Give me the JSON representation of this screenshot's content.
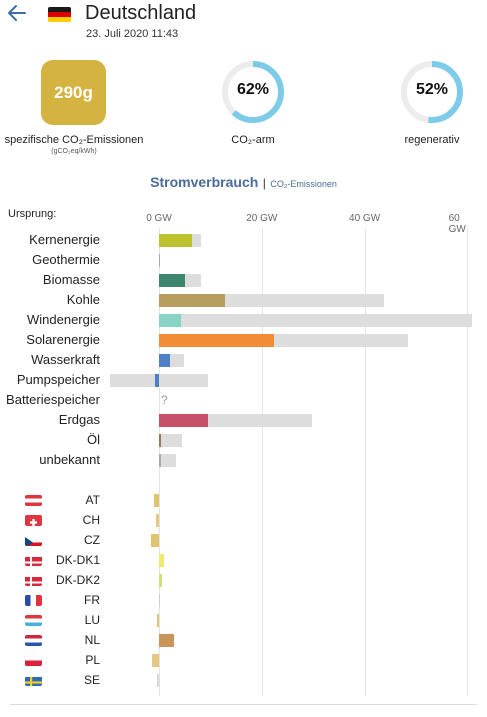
{
  "header": {
    "title": "Deutschland",
    "timestamp": "23. Juli 2020 11:43"
  },
  "colors": {
    "co2_square": "#d4b340",
    "gauge_fill": "#7dcbe8",
    "gauge_track": "#ececec",
    "capacity_bar": "#dddddd",
    "link": "#4a6a99"
  },
  "icons": {
    "back": "arrow-left-icon",
    "zone_flag": "flag-de-icon"
  },
  "metrics": {
    "co2_value": "290g",
    "co2_label": "spezifische CO₂-Emissionen",
    "co2_unit": "(gCO₂eq/kWh)",
    "low_carbon_value": "62%",
    "low_carbon_fraction": 0.62,
    "low_carbon_label": "CO₂-arm",
    "renewable_value": "52%",
    "renewable_fraction": 0.52,
    "renewable_label": "regenerativ"
  },
  "tabs": {
    "active": "Stromverbrauch",
    "separator": "|",
    "other": "CO₂-Emissionen"
  },
  "chart": {
    "origin_label": "Ursprung:",
    "ticks": [
      "0 GW",
      "20 GW",
      "40 GW",
      "60 GW"
    ],
    "tick_values": [
      0,
      20,
      40,
      60
    ],
    "xlim": [
      -9.5,
      61.5
    ],
    "production": [
      {
        "label": "Kernenergie",
        "value": 6.5,
        "capacity": 8.1,
        "color": "#bfc22f"
      },
      {
        "label": "Geothermie",
        "value": 0.05,
        "capacity": 0.05,
        "color": "#aaaaaa"
      },
      {
        "label": "Biomasse",
        "value": 5.0,
        "capacity": 8.2,
        "color": "#3d8570"
      },
      {
        "label": "Kohle",
        "value": 12.8,
        "capacity": 43.8,
        "color": "#b89e5e"
      },
      {
        "label": "Windenergie",
        "value": 4.2,
        "capacity": 60.8,
        "color": "#87d4c4"
      },
      {
        "label": "Solarenergie",
        "value": 22.3,
        "capacity": 48.5,
        "color": "#f08d35"
      },
      {
        "label": "Wasserkraft",
        "value": 2.2,
        "capacity": 4.8,
        "color": "#4d80c4"
      },
      {
        "label": "Pumpspeicher",
        "value": -0.7,
        "capacity": 9.6,
        "capacity_min": -9.5,
        "color": "#4d80c4"
      },
      {
        "label": "Batteriespeicher",
        "value": null,
        "capacity": null,
        "color": "#aaaaaa",
        "note": "?"
      },
      {
        "label": "Erdgas",
        "value": 9.6,
        "capacity": 29.8,
        "color": "#c6526a"
      },
      {
        "label": "Öl",
        "value": 0.4,
        "capacity": 4.4,
        "color": "#967a58"
      },
      {
        "label": "unbekannt",
        "value": 0.3,
        "capacity": 3.3,
        "color": "#aaaaaa"
      }
    ],
    "exchanges": [
      {
        "label": "AT",
        "value": -0.9,
        "color": "#e2c370",
        "flag": "flag-at-icon"
      },
      {
        "label": "CH",
        "value": -0.6,
        "color": "#e6c880",
        "flag": "flag-ch-icon"
      },
      {
        "label": "CZ",
        "value": -1.6,
        "color": "#e2c370",
        "flag": "flag-cz-icon"
      },
      {
        "label": "DK-DK1",
        "value": 1.0,
        "color": "#f2e870",
        "flag": "flag-dk-icon"
      },
      {
        "label": "DK-DK2",
        "value": 0.5,
        "color": "#cfe07a",
        "flag": "flag-dk-icon"
      },
      {
        "label": "FR",
        "value": 0.0,
        "color": "#cccccc",
        "flag": "flag-fr-icon"
      },
      {
        "label": "LU",
        "value": -0.3,
        "color": "#e2c370",
        "flag": "flag-lu-icon"
      },
      {
        "label": "NL",
        "value": 2.9,
        "color": "#c9955a",
        "flag": "flag-nl-icon"
      },
      {
        "label": "PL",
        "value": -1.3,
        "color": "#e6c880",
        "flag": "flag-pl-icon"
      },
      {
        "label": "SE",
        "value": -0.4,
        "color": "#d8d8d8",
        "flag": "flag-se-icon"
      }
    ]
  }
}
